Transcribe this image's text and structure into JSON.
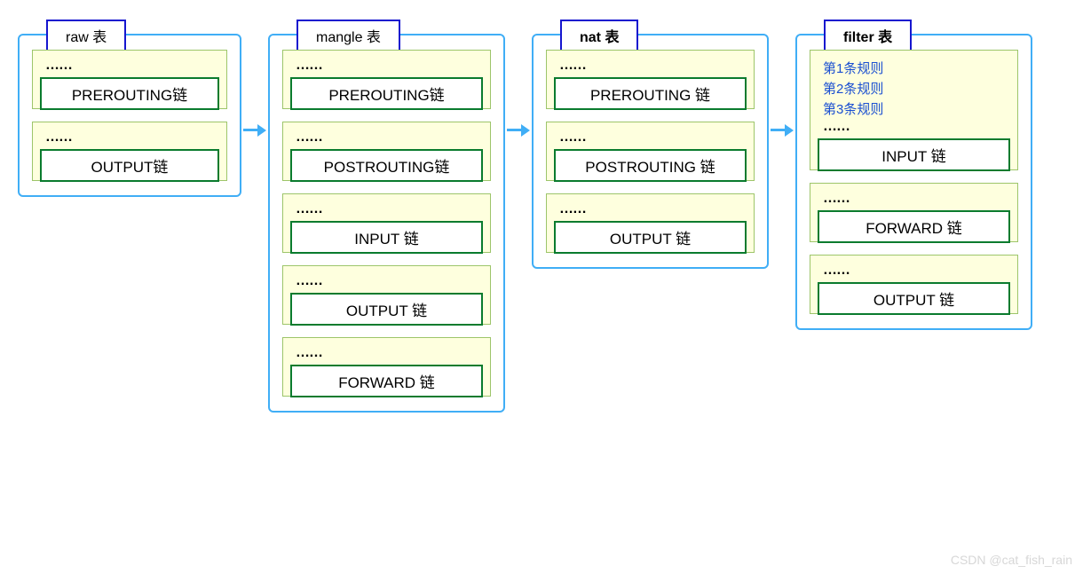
{
  "colors": {
    "box_border": "#40aef6",
    "title_border": "#1616cf",
    "title_text": "#000000",
    "chain_bg": "#feffde",
    "chain_border": "#9dc56a",
    "chain_label_border": "#0a7b2e",
    "chain_label_text": "#000000",
    "dots_text": "#000000",
    "rule_text": "#1a4fd1",
    "arrow": "#40aef6",
    "watermark": "#d7d7d7"
  },
  "layout": {
    "table_widths": [
      220,
      235,
      235,
      235
    ],
    "arrow_gap": 30,
    "title_fontsize": 16,
    "chain_fontsize": 17,
    "rule_fontsize": 15
  },
  "dots": "……",
  "tables": [
    {
      "title": "raw 表",
      "title_bold": false,
      "chains": [
        {
          "dots": true,
          "rules": [],
          "label": "PREROUTING链"
        },
        {
          "dots": true,
          "rules": [],
          "label": "OUTPUT链"
        }
      ]
    },
    {
      "title": "mangle 表",
      "title_bold": false,
      "chains": [
        {
          "dots": true,
          "rules": [],
          "label": "PREROUTING链"
        },
        {
          "dots": true,
          "rules": [],
          "label": "POSTROUTING链"
        },
        {
          "dots": true,
          "rules": [],
          "label": "INPUT 链"
        },
        {
          "dots": true,
          "rules": [],
          "label": "OUTPUT 链"
        },
        {
          "dots": true,
          "rules": [],
          "label": "FORWARD 链"
        }
      ]
    },
    {
      "title": "nat 表",
      "title_bold": true,
      "chains": [
        {
          "dots": true,
          "rules": [],
          "label": "PREROUTING 链"
        },
        {
          "dots": true,
          "rules": [],
          "label": "POSTROUTING 链"
        },
        {
          "dots": true,
          "rules": [],
          "label": "OUTPUT 链"
        }
      ]
    },
    {
      "title": "filter 表",
      "title_bold": true,
      "chains": [
        {
          "dots": true,
          "rules": [
            "第1条规则",
            "第2条规则",
            "第3条规则"
          ],
          "label": "INPUT 链"
        },
        {
          "dots": true,
          "rules": [],
          "label": "FORWARD 链"
        },
        {
          "dots": true,
          "rules": [],
          "label": "OUTPUT 链"
        }
      ]
    }
  ],
  "watermark": "CSDN @cat_fish_rain"
}
